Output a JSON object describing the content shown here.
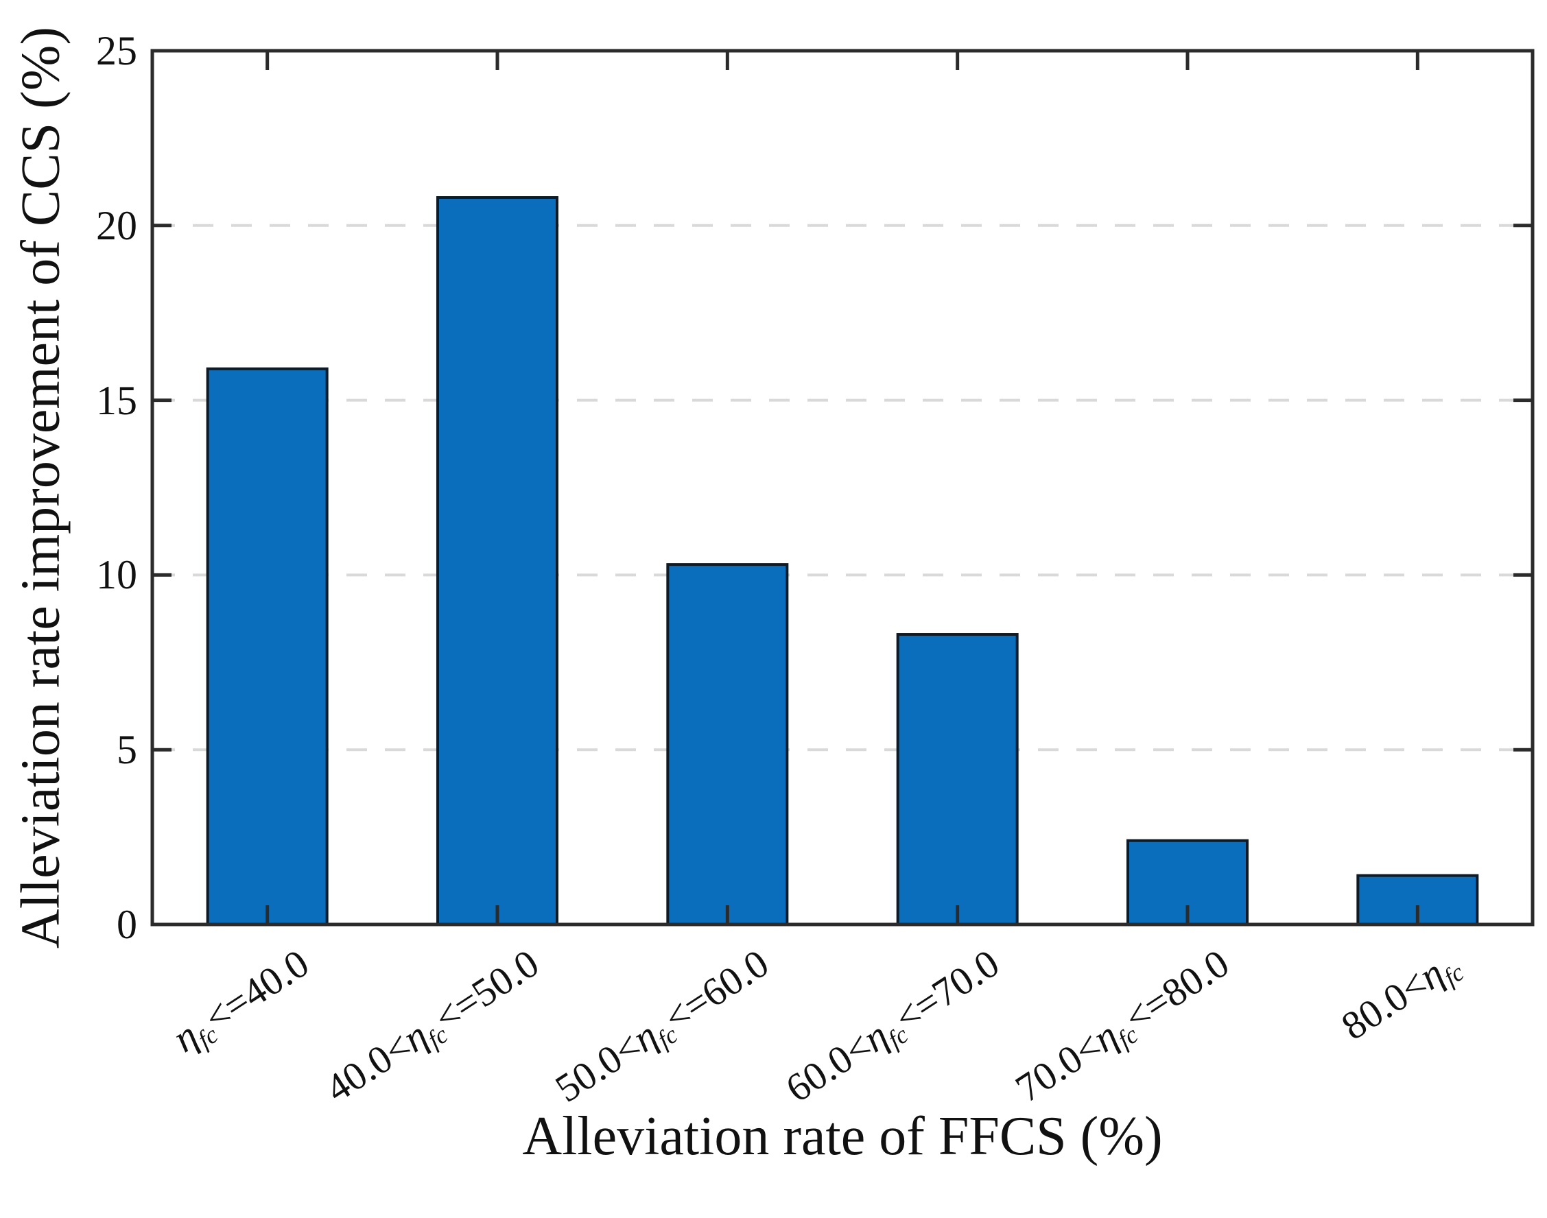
{
  "figure": {
    "background": "#ffffff"
  },
  "chart_data": {
    "type": "bar",
    "title": "",
    "xlabel": "Alleviation rate of FFCS (%)",
    "ylabel": "Alleviation rate improvement of CCS (%)",
    "categories": [
      "η_fc<=40.0",
      "40.0<η_fc<=50.0",
      "50.0<η_fc<=60.0",
      "60.0<η_fc<=70.0",
      "70.0<η_fc<=80.0",
      "80.0<η_fc"
    ],
    "category_parts": [
      {
        "pre": "",
        "post": "<=40.0"
      },
      {
        "pre": "40.0<",
        "post": "<=50.0"
      },
      {
        "pre": "50.0<",
        "post": "<=60.0"
      },
      {
        "pre": "60.0<",
        "post": "<=70.0"
      },
      {
        "pre": "70.0<",
        "post": "<=80.0"
      },
      {
        "pre": "80.0<",
        "post": ""
      }
    ],
    "eta_symbol": "η",
    "eta_subscript": "fc",
    "values": [
      15.9,
      20.8,
      10.3,
      8.3,
      2.4,
      1.4
    ],
    "ylim": [
      0,
      25
    ],
    "yticks": [
      0,
      5,
      10,
      15,
      20,
      25
    ],
    "grid": "horizontal dashed lines at y ticks",
    "legend": "none",
    "ticks_direction": "in",
    "frame": "full box with mirrored ticks",
    "colors": {
      "bar_fill": "#0a6ebd",
      "bar_edge": "#0e1b26",
      "grid_line": "#d9d9d9",
      "axis_line": "#2b2b2b",
      "text": "#111111"
    }
  }
}
